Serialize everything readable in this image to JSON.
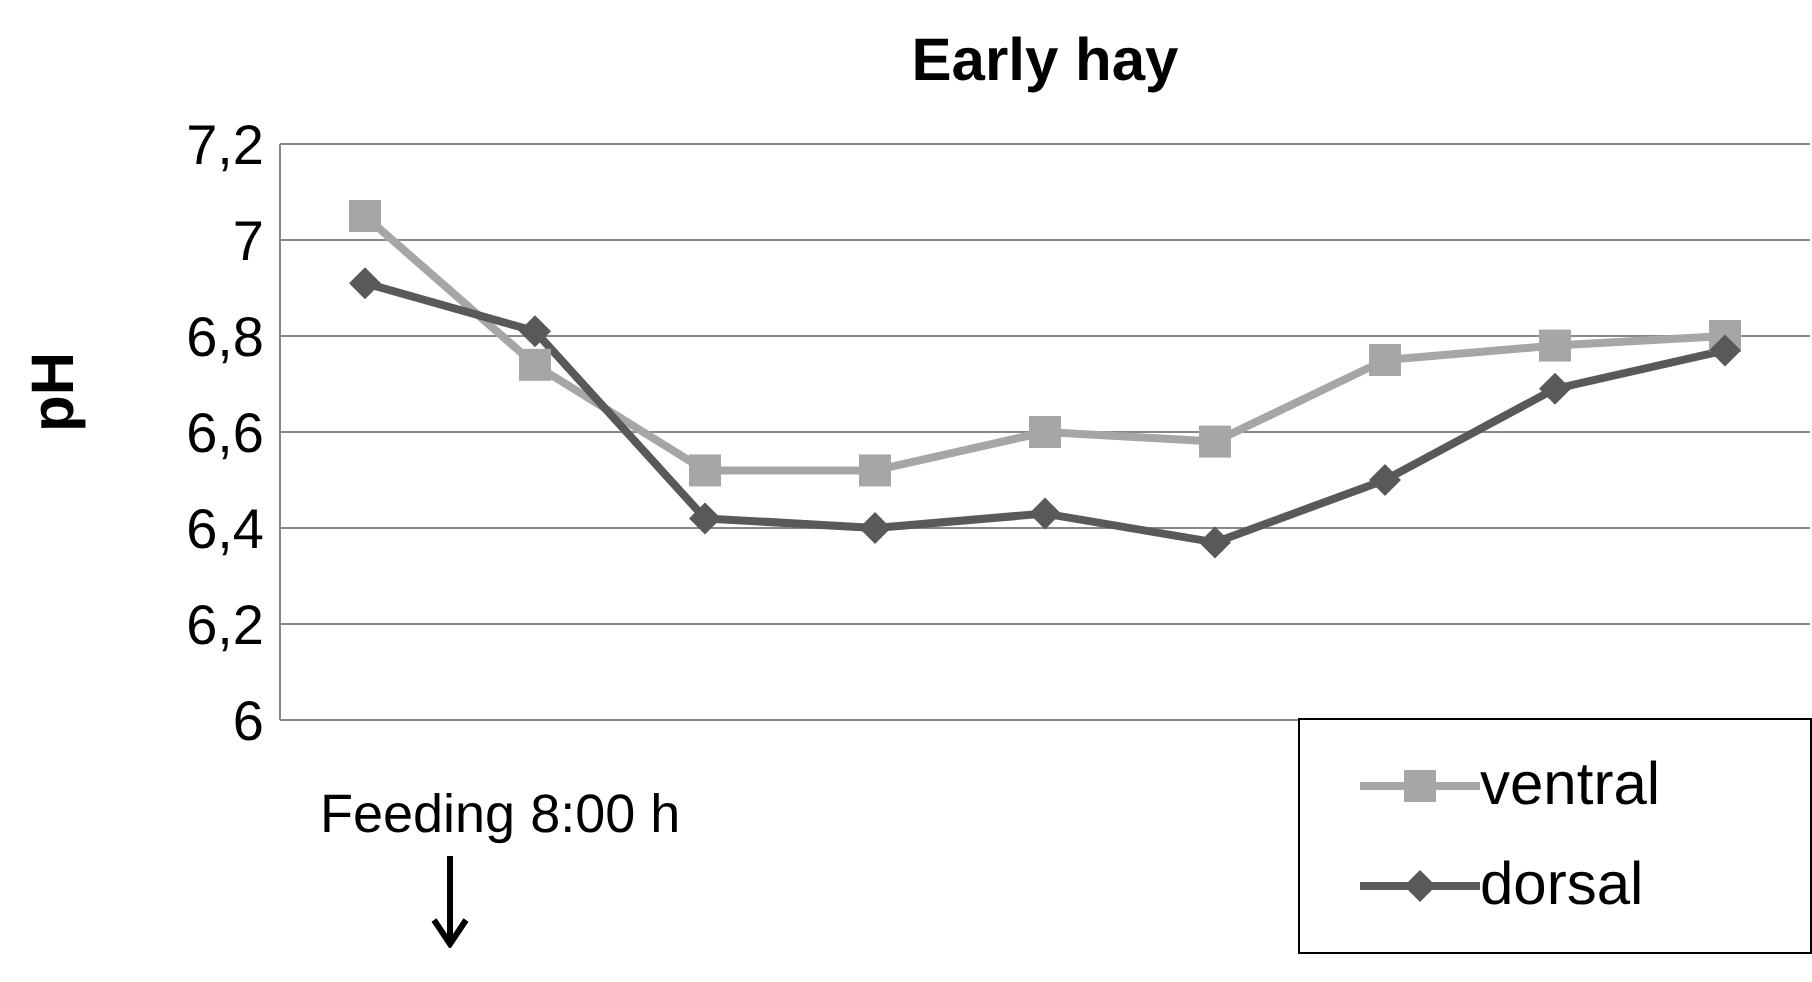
{
  "chart_data": {
    "type": "line",
    "title": "Early hay",
    "ylabel": "pH",
    "categories": [
      null,
      null,
      null,
      null,
      null,
      null,
      null,
      null,
      null
    ],
    "series": [
      {
        "name": "ventral",
        "color": "#a6a6a6",
        "marker": "square",
        "values": [
          7.05,
          6.74,
          6.52,
          6.52,
          6.6,
          6.58,
          6.75,
          6.78,
          6.8
        ]
      },
      {
        "name": "dorsal",
        "color": "#595959",
        "marker": "diamond",
        "values": [
          6.91,
          6.81,
          6.42,
          6.4,
          6.43,
          6.37,
          6.5,
          6.69,
          6.77
        ]
      }
    ],
    "ylim": [
      6,
      7.2
    ],
    "yticks": [
      6,
      {
        "value": 6.2,
        "label": "6,2"
      },
      {
        "value": 6.4,
        "label": "6,4"
      },
      {
        "value": 6.6,
        "label": "6,6"
      },
      {
        "value": 6.8,
        "label": "6,8"
      },
      7,
      {
        "value": 7.2,
        "label": "7,2"
      }
    ],
    "grid": "y",
    "legend": "bottom right",
    "tick_labels": "y",
    "annotations": [
      "Feeding 8:00 h"
    ]
  }
}
